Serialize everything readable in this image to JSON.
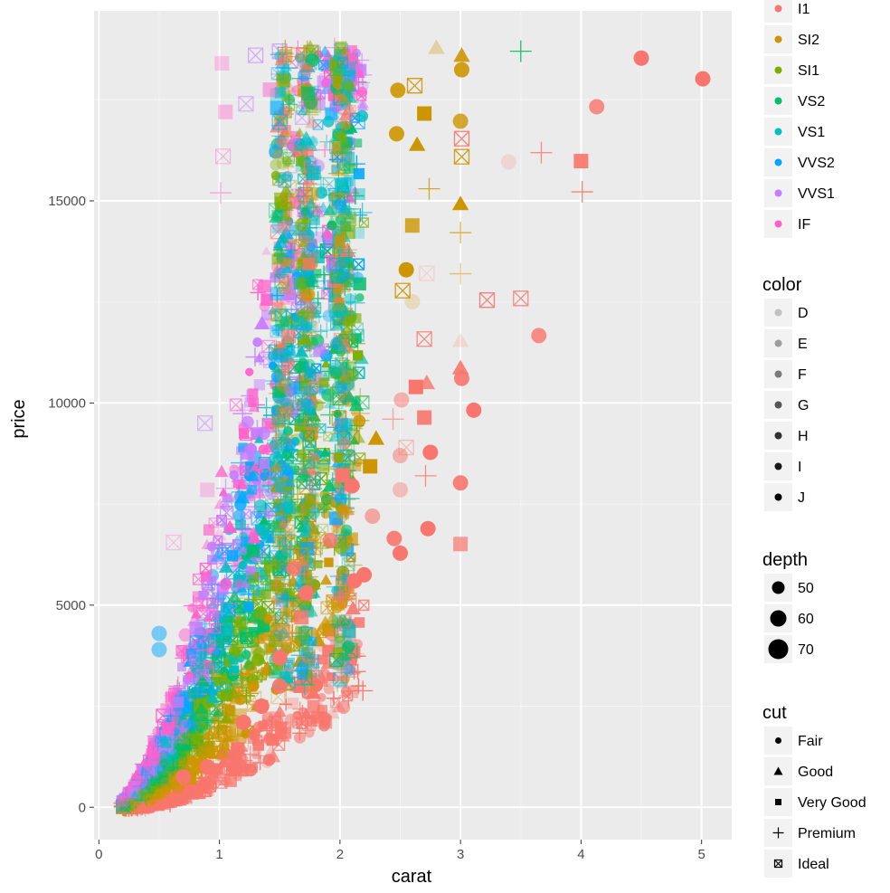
{
  "chart_data": {
    "type": "scatter",
    "xlabel": "carat",
    "ylabel": "price",
    "xlim": [
      -0.04,
      5.25
    ],
    "ylim": [
      -800,
      19700
    ],
    "x_ticks": [
      "0",
      "1",
      "2",
      "3",
      "4",
      "5"
    ],
    "y_ticks": [
      "0",
      "5000",
      "10000",
      "15000"
    ],
    "x_tick_values": [
      0,
      1,
      2,
      3,
      4,
      5
    ],
    "y_tick_values": [
      0,
      5000,
      10000,
      15000
    ],
    "grid": true,
    "legend_position": "right",
    "legends": {
      "clarity": {
        "title": "",
        "entries": [
          {
            "label": "I1",
            "color": "#F8766D"
          },
          {
            "label": "SI2",
            "color": "#CD9600"
          },
          {
            "label": "SI1",
            "color": "#7CAE00"
          },
          {
            "label": "VS2",
            "color": "#00BE67"
          },
          {
            "label": "VS1",
            "color": "#00BFC4"
          },
          {
            "label": "VVS2",
            "color": "#00A9FF"
          },
          {
            "label": "VVS1",
            "color": "#C77CFF"
          },
          {
            "label": "IF",
            "color": "#FF61CC"
          }
        ]
      },
      "color": {
        "title": "color",
        "entries": [
          {
            "label": "D",
            "alpha": 0.2
          },
          {
            "label": "E",
            "alpha": 0.35
          },
          {
            "label": "F",
            "alpha": 0.5
          },
          {
            "label": "G",
            "alpha": 0.65
          },
          {
            "label": "H",
            "alpha": 0.8
          },
          {
            "label": "I",
            "alpha": 0.9
          },
          {
            "label": "J",
            "alpha": 1.0
          }
        ]
      },
      "depth": {
        "title": "depth",
        "entries": [
          {
            "label": "50",
            "value": 50
          },
          {
            "label": "60",
            "value": 60
          },
          {
            "label": "70",
            "value": 70
          }
        ]
      },
      "cut": {
        "title": "cut",
        "entries": [
          {
            "label": "Fair",
            "shape": "circle"
          },
          {
            "label": "Good",
            "shape": "triangle"
          },
          {
            "label": "Very Good",
            "shape": "square"
          },
          {
            "label": "Premium",
            "shape": "plus"
          },
          {
            "label": "Ideal",
            "shape": "square-cross"
          }
        ]
      }
    },
    "points": [
      {
        "x": 5.01,
        "y": 18018,
        "clarity": "I1",
        "cut": "Fair",
        "alpha": 1.0
      },
      {
        "x": 4.5,
        "y": 18531,
        "clarity": "I1",
        "cut": "Fair",
        "alpha": 1.0
      },
      {
        "x": 4.13,
        "y": 17329,
        "clarity": "I1",
        "cut": "Fair",
        "alpha": 0.8
      },
      {
        "x": 4.01,
        "y": 15223,
        "clarity": "I1",
        "cut": "Premium",
        "alpha": 0.9
      },
      {
        "x": 4.0,
        "y": 15984,
        "clarity": "I1",
        "cut": "Very Good",
        "alpha": 0.9
      },
      {
        "x": 3.67,
        "y": 16193,
        "clarity": "I1",
        "cut": "Premium",
        "alpha": 0.8
      },
      {
        "x": 3.65,
        "y": 11668,
        "clarity": "I1",
        "cut": "Fair",
        "alpha": 0.8
      },
      {
        "x": 3.5,
        "y": 18701,
        "clarity": "VS2",
        "cut": "Premium",
        "alpha": 0.9
      },
      {
        "x": 3.4,
        "y": 15964,
        "clarity": "I1",
        "cut": "Fair",
        "alpha": 0.2
      },
      {
        "x": 3.5,
        "y": 12587,
        "clarity": "I1",
        "cut": "Ideal",
        "alpha": 0.8
      },
      {
        "x": 3.22,
        "y": 12545,
        "clarity": "I1",
        "cut": "Ideal",
        "alpha": 0.9
      },
      {
        "x": 3.11,
        "y": 9823,
        "clarity": "I1",
        "cut": "Fair",
        "alpha": 1.0
      },
      {
        "x": 3.01,
        "y": 18242,
        "clarity": "SI2",
        "cut": "Fair",
        "alpha": 0.9
      },
      {
        "x": 3.01,
        "y": 18593,
        "clarity": "SI2",
        "cut": "Good",
        "alpha": 0.9
      },
      {
        "x": 3.0,
        "y": 16970,
        "clarity": "SI2",
        "cut": "Fair",
        "alpha": 0.8
      },
      {
        "x": 3.01,
        "y": 16538,
        "clarity": "I1",
        "cut": "Ideal",
        "alpha": 0.9
      },
      {
        "x": 3.01,
        "y": 16091,
        "clarity": "SI2",
        "cut": "Ideal",
        "alpha": 0.9
      },
      {
        "x": 3.0,
        "y": 14924,
        "clarity": "SI2",
        "cut": "Good",
        "alpha": 1.0
      },
      {
        "x": 3.0,
        "y": 14213,
        "clarity": "SI2",
        "cut": "Premium",
        "alpha": 0.7
      },
      {
        "x": 3.0,
        "y": 13197,
        "clarity": "SI2",
        "cut": "Premium",
        "alpha": 0.5
      },
      {
        "x": 3.0,
        "y": 11540,
        "clarity": "I1",
        "cut": "Good",
        "alpha": 0.2
      },
      {
        "x": 3.0,
        "y": 10863,
        "clarity": "I1",
        "cut": "Good",
        "alpha": 0.9
      },
      {
        "x": 3.01,
        "y": 10607,
        "clarity": "I1",
        "cut": "Fair",
        "alpha": 0.9
      },
      {
        "x": 3.0,
        "y": 8023,
        "clarity": "I1",
        "cut": "Fair",
        "alpha": 0.9
      },
      {
        "x": 3.0,
        "y": 6512,
        "clarity": "I1",
        "cut": "Very Good",
        "alpha": 0.7
      },
      {
        "x": 2.8,
        "y": 18788,
        "clarity": "SI2",
        "cut": "Good",
        "alpha": 0.3
      },
      {
        "x": 2.75,
        "y": 8780,
        "clarity": "I1",
        "cut": "Fair",
        "alpha": 1.0
      },
      {
        "x": 2.73,
        "y": 6892,
        "clarity": "I1",
        "cut": "Fair",
        "alpha": 1.0
      },
      {
        "x": 2.74,
        "y": 15300,
        "clarity": "SI2",
        "cut": "Premium",
        "alpha": 0.8
      },
      {
        "x": 2.72,
        "y": 13206,
        "clarity": "I1",
        "cut": "Ideal",
        "alpha": 0.2
      },
      {
        "x": 2.6,
        "y": 12506,
        "clarity": "SI2",
        "cut": "Fair",
        "alpha": 0.2
      },
      {
        "x": 2.7,
        "y": 11581,
        "clarity": "I1",
        "cut": "Ideal",
        "alpha": 0.8
      },
      {
        "x": 2.72,
        "y": 10496,
        "clarity": "I1",
        "cut": "Good",
        "alpha": 0.8
      },
      {
        "x": 2.63,
        "y": 10398,
        "clarity": "I1",
        "cut": "Very Good",
        "alpha": 1.0
      },
      {
        "x": 2.7,
        "y": 9640,
        "clarity": "I1",
        "cut": "Very Good",
        "alpha": 0.9
      },
      {
        "x": 2.71,
        "y": 8200,
        "clarity": "I1",
        "cut": "Premium",
        "alpha": 0.8
      },
      {
        "x": 2.5,
        "y": 8699,
        "clarity": "I1",
        "cut": "Fair",
        "alpha": 0.5
      },
      {
        "x": 2.5,
        "y": 7854,
        "clarity": "I1",
        "cut": "Fair",
        "alpha": 0.4
      },
      {
        "x": 2.5,
        "y": 6285,
        "clarity": "I1",
        "cut": "Fair",
        "alpha": 1.0
      },
      {
        "x": 2.51,
        "y": 10076,
        "clarity": "I1",
        "cut": "Fair",
        "alpha": 0.5
      },
      {
        "x": 2.44,
        "y": 9600,
        "clarity": "I1",
        "cut": "Premium",
        "alpha": 0.6
      },
      {
        "x": 2.55,
        "y": 8900,
        "clarity": "I1",
        "cut": "Ideal",
        "alpha": 0.4
      },
      {
        "x": 2.6,
        "y": 14391,
        "clarity": "SI2",
        "cut": "Very Good",
        "alpha": 0.8
      },
      {
        "x": 2.55,
        "y": 13295,
        "clarity": "SI2",
        "cut": "Fair",
        "alpha": 1.0
      },
      {
        "x": 2.52,
        "y": 12779,
        "clarity": "SI2",
        "cut": "Ideal",
        "alpha": 0.9
      },
      {
        "x": 2.48,
        "y": 17735,
        "clarity": "SI2",
        "cut": "Fair",
        "alpha": 0.9
      },
      {
        "x": 2.62,
        "y": 17850,
        "clarity": "SI2",
        "cut": "Ideal",
        "alpha": 0.9
      },
      {
        "x": 2.47,
        "y": 16660,
        "clarity": "SI2",
        "cut": "Fair",
        "alpha": 0.9
      },
      {
        "x": 2.64,
        "y": 16390,
        "clarity": "SI2",
        "cut": "Good",
        "alpha": 1.0
      },
      {
        "x": 2.7,
        "y": 17160,
        "clarity": "SI2",
        "cut": "Very Good",
        "alpha": 1.0
      },
      {
        "x": 2.3,
        "y": 9120,
        "clarity": "SI2",
        "cut": "Good",
        "alpha": 1.0
      },
      {
        "x": 2.25,
        "y": 8434,
        "clarity": "SI2",
        "cut": "Very Good",
        "alpha": 1.0
      },
      {
        "x": 2.27,
        "y": 7200,
        "clarity": "I1",
        "cut": "Fair",
        "alpha": 0.6
      },
      {
        "x": 2.1,
        "y": 7950,
        "clarity": "I1",
        "cut": "Fair",
        "alpha": 1.0
      },
      {
        "x": 2.02,
        "y": 8210,
        "clarity": "I1",
        "cut": "Very Good",
        "alpha": 1.0
      },
      {
        "x": 2.0,
        "y": 5200,
        "clarity": "I1",
        "cut": "Premium",
        "alpha": 0.9
      },
      {
        "x": 2.12,
        "y": 5600,
        "clarity": "I1",
        "cut": "Fair",
        "alpha": 1.0
      },
      {
        "x": 2.2,
        "y": 5750,
        "clarity": "I1",
        "cut": "Fair",
        "alpha": 1.0
      },
      {
        "x": 2.45,
        "y": 6650,
        "clarity": "I1",
        "cut": "Fair",
        "alpha": 0.9
      },
      {
        "x": 1.92,
        "y": 6600,
        "clarity": "I1",
        "cut": "Fair",
        "alpha": 0.8
      },
      {
        "x": 1.72,
        "y": 5300,
        "clarity": "I1",
        "cut": "Fair",
        "alpha": 1.0
      },
      {
        "x": 1.68,
        "y": 4700,
        "clarity": "I1",
        "cut": "Very Good",
        "alpha": 0.8
      },
      {
        "x": 1.62,
        "y": 5900,
        "clarity": "I1",
        "cut": "Fair",
        "alpha": 0.8
      },
      {
        "x": 1.5,
        "y": 3700,
        "clarity": "I1",
        "cut": "Fair",
        "alpha": 1.0
      },
      {
        "x": 1.5,
        "y": 3000,
        "clarity": "I1",
        "cut": "Fair",
        "alpha": 0.9
      },
      {
        "x": 1.35,
        "y": 2500,
        "clarity": "I1",
        "cut": "Fair",
        "alpha": 1.0
      },
      {
        "x": 1.2,
        "y": 2100,
        "clarity": "I1",
        "cut": "Fair",
        "alpha": 1.0
      },
      {
        "x": 1.04,
        "y": 1250,
        "clarity": "I1",
        "cut": "Fair",
        "alpha": 0.4
      },
      {
        "x": 0.9,
        "y": 1000,
        "clarity": "I1",
        "cut": "Fair",
        "alpha": 1.0
      },
      {
        "x": 0.7,
        "y": 750,
        "clarity": "I1",
        "cut": "Fair",
        "alpha": 1.0
      },
      {
        "x": 0.5,
        "y": 3900,
        "clarity": "VVS2",
        "cut": "Fair",
        "alpha": 0.5
      },
      {
        "x": 0.5,
        "y": 4300,
        "clarity": "VVS2",
        "cut": "Fair",
        "alpha": 0.5
      },
      {
        "x": 0.62,
        "y": 6550,
        "clarity": "IF",
        "cut": "Ideal",
        "alpha": 0.3
      },
      {
        "x": 0.9,
        "y": 7850,
        "clarity": "IF",
        "cut": "Very Good",
        "alpha": 0.3
      },
      {
        "x": 0.88,
        "y": 9500,
        "clarity": "VVS1",
        "cut": "Ideal",
        "alpha": 0.5
      },
      {
        "x": 1.02,
        "y": 18400,
        "clarity": "IF",
        "cut": "Very Good",
        "alpha": 0.3
      },
      {
        "x": 1.05,
        "y": 17200,
        "clarity": "IF",
        "cut": "Very Good",
        "alpha": 0.4
      },
      {
        "x": 1.03,
        "y": 16100,
        "clarity": "IF",
        "cut": "Ideal",
        "alpha": 0.4
      },
      {
        "x": 1.01,
        "y": 15200,
        "clarity": "IF",
        "cut": "Premium",
        "alpha": 0.5
      },
      {
        "x": 1.3,
        "y": 18600,
        "clarity": "VVS1",
        "cut": "Ideal",
        "alpha": 0.6
      },
      {
        "x": 1.5,
        "y": 18700,
        "clarity": "VVS1",
        "cut": "Ideal",
        "alpha": 0.6
      },
      {
        "x": 1.22,
        "y": 17400,
        "clarity": "VVS1",
        "cut": "Ideal",
        "alpha": 0.5
      },
      {
        "x": 1.5,
        "y": 16950,
        "clarity": "VVS2",
        "cut": "Ideal",
        "alpha": 0.6
      },
      {
        "x": 1.42,
        "y": 17750,
        "clarity": "IF",
        "cut": "Very Good",
        "alpha": 0.5
      }
    ]
  }
}
